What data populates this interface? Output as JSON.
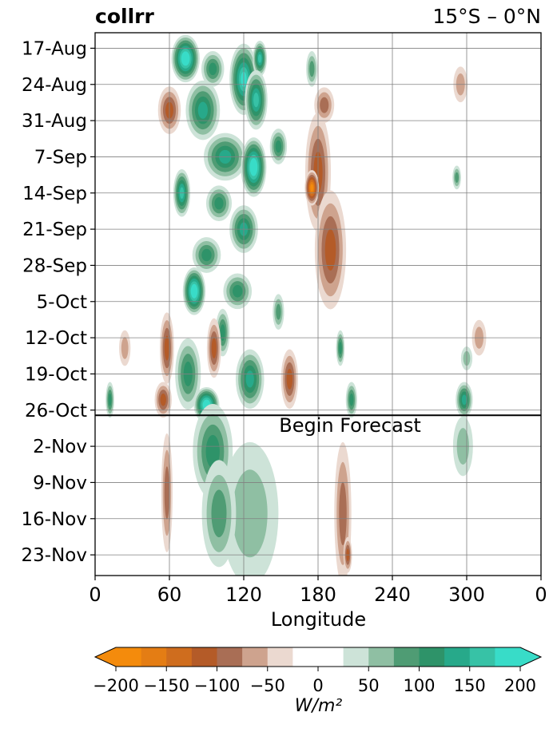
{
  "header": {
    "title_left": "collrr",
    "title_right": "15°S – 0°N"
  },
  "chart_data": {
    "type": "heatmap",
    "title": "collrr",
    "subtitle": "15°S – 0°N",
    "xlabel": "Longitude",
    "ylabel": "",
    "x_ticks": [
      "0",
      "60",
      "120",
      "180",
      "240",
      "300",
      "0"
    ],
    "x_tick_values": [
      0,
      60,
      120,
      180,
      240,
      300,
      360
    ],
    "xlim": [
      0,
      360
    ],
    "y_ticks": [
      "17-Aug",
      "24-Aug",
      "31-Aug",
      "7-Sep",
      "14-Sep",
      "21-Sep",
      "28-Sep",
      "5-Oct",
      "12-Oct",
      "19-Oct",
      "26-Oct",
      "2-Nov",
      "9-Nov",
      "16-Nov",
      "23-Nov"
    ],
    "y_tick_days": [
      0,
      7,
      14,
      21,
      28,
      35,
      42,
      49,
      56,
      63,
      70,
      77,
      84,
      91,
      98
    ],
    "ylim_days": [
      -3,
      102
    ],
    "grid": true,
    "annotation": {
      "text": "Begin Forecast",
      "day": 71
    },
    "colorbar": {
      "label": "W/m²",
      "ticks": [
        "−200",
        "−150",
        "−100",
        "−50",
        "0",
        "50",
        "100",
        "150",
        "200"
      ],
      "tick_values": [
        -200,
        -150,
        -100,
        -50,
        0,
        50,
        100,
        150,
        200
      ],
      "levels": [
        -200,
        -175,
        -150,
        -125,
        -100,
        -75,
        -50,
        -25,
        25,
        50,
        75,
        100,
        125,
        150,
        175,
        200
      ],
      "colors": [
        "#f48b0c",
        "#e47d14",
        "#cf6d1e",
        "#b45b28",
        "#a96e55",
        "#cea38e",
        "#ebd9d0",
        "#ffffff",
        "#cde3d8",
        "#8fbfa3",
        "#4f9c74",
        "#2e9369",
        "#27a98a",
        "#37c2a6",
        "#38dcc8"
      ],
      "extend": "both",
      "under_color": "#f48b0c",
      "over_color": "#38dcc8"
    },
    "features": [
      {
        "lon": 73,
        "day": 2,
        "rx": 10,
        "ry": 4,
        "value": 200
      },
      {
        "lon": 95,
        "day": 4,
        "rx": 8,
        "ry": 3,
        "value": 100
      },
      {
        "lon": 120,
        "day": 6,
        "rx": 10,
        "ry": 6,
        "value": 175
      },
      {
        "lon": 133,
        "day": 2,
        "rx": 5,
        "ry": 3,
        "value": 150
      },
      {
        "lon": 87,
        "day": 12,
        "rx": 12,
        "ry": 5,
        "value": 125
      },
      {
        "lon": 130,
        "day": 10,
        "rx": 8,
        "ry": 5,
        "value": 150
      },
      {
        "lon": 105,
        "day": 21,
        "rx": 15,
        "ry": 4,
        "value": 125
      },
      {
        "lon": 128,
        "day": 23,
        "rx": 9,
        "ry": 5,
        "value": 200
      },
      {
        "lon": 148,
        "day": 19,
        "rx": 6,
        "ry": 3,
        "value": 100
      },
      {
        "lon": 70,
        "day": 28,
        "rx": 6,
        "ry": 4,
        "value": 150
      },
      {
        "lon": 100,
        "day": 30,
        "rx": 9,
        "ry": 3,
        "value": 100
      },
      {
        "lon": 120,
        "day": 35,
        "rx": 10,
        "ry": 4,
        "value": 125
      },
      {
        "lon": 90,
        "day": 40,
        "rx": 10,
        "ry": 3,
        "value": 100
      },
      {
        "lon": 80,
        "day": 47,
        "rx": 8,
        "ry": 4,
        "value": 200
      },
      {
        "lon": 115,
        "day": 47,
        "rx": 10,
        "ry": 3,
        "value": 100
      },
      {
        "lon": 103,
        "day": 55,
        "rx": 5,
        "ry": 4,
        "value": 100
      },
      {
        "lon": 148,
        "day": 51,
        "rx": 4,
        "ry": 3,
        "value": 75
      },
      {
        "lon": 75,
        "day": 63,
        "rx": 9,
        "ry": 6,
        "value": 100
      },
      {
        "lon": 125,
        "day": 64,
        "rx": 10,
        "ry": 5,
        "value": 125
      },
      {
        "lon": 90,
        "day": 69,
        "rx": 9,
        "ry": 3,
        "value": 200
      },
      {
        "lon": 12,
        "day": 68,
        "rx": 3,
        "ry": 3,
        "value": 100
      },
      {
        "lon": 198,
        "day": 58,
        "rx": 3,
        "ry": 3,
        "value": 100
      },
      {
        "lon": 207,
        "day": 68,
        "rx": 4,
        "ry": 3,
        "value": 100
      },
      {
        "lon": 298,
        "day": 68,
        "rx": 6,
        "ry": 3,
        "value": 125
      },
      {
        "lon": 292,
        "day": 25,
        "rx": 3,
        "ry": 2,
        "value": 75
      },
      {
        "lon": 300,
        "day": 60,
        "rx": 4,
        "ry": 2,
        "value": 50
      },
      {
        "lon": 175,
        "day": 4,
        "rx": 4,
        "ry": 3,
        "value": 75
      },
      {
        "lon": 125,
        "day": 90,
        "rx": 20,
        "ry": 12,
        "value": 50
      },
      {
        "lon": 95,
        "day": 78,
        "rx": 14,
        "ry": 8,
        "value": 100
      },
      {
        "lon": 100,
        "day": 90,
        "rx": 12,
        "ry": 9,
        "value": 75
      },
      {
        "lon": 297,
        "day": 77,
        "rx": 7,
        "ry": 5,
        "value": 50
      },
      {
        "lon": 60,
        "day": 12,
        "rx": 8,
        "ry": 4,
        "value": -100
      },
      {
        "lon": 180,
        "day": 24,
        "rx": 9,
        "ry": 10,
        "value": -100
      },
      {
        "lon": 175,
        "day": 27,
        "rx": 5,
        "ry": 3,
        "value": -175
      },
      {
        "lon": 190,
        "day": 39,
        "rx": 11,
        "ry": 10,
        "value": -100
      },
      {
        "lon": 185,
        "day": 11,
        "rx": 7,
        "ry": 3,
        "value": -75
      },
      {
        "lon": 58,
        "day": 58,
        "rx": 5,
        "ry": 6,
        "value": -100
      },
      {
        "lon": 96,
        "day": 58,
        "rx": 5,
        "ry": 5,
        "value": -100
      },
      {
        "lon": 157,
        "day": 64,
        "rx": 6,
        "ry": 5,
        "value": -100
      },
      {
        "lon": 55,
        "day": 68,
        "rx": 6,
        "ry": 3,
        "value": -100
      },
      {
        "lon": 58,
        "day": 86,
        "rx": 4,
        "ry": 10,
        "value": -75
      },
      {
        "lon": 200,
        "day": 90,
        "rx": 6,
        "ry": 12,
        "value": -75
      },
      {
        "lon": 204,
        "day": 98,
        "rx": 3,
        "ry": 3,
        "value": -100
      },
      {
        "lon": 295,
        "day": 7,
        "rx": 5,
        "ry": 3,
        "value": -50
      },
      {
        "lon": 24,
        "day": 58,
        "rx": 4,
        "ry": 3,
        "value": -50
      },
      {
        "lon": 310,
        "day": 56,
        "rx": 5,
        "ry": 3,
        "value": -50
      }
    ]
  }
}
